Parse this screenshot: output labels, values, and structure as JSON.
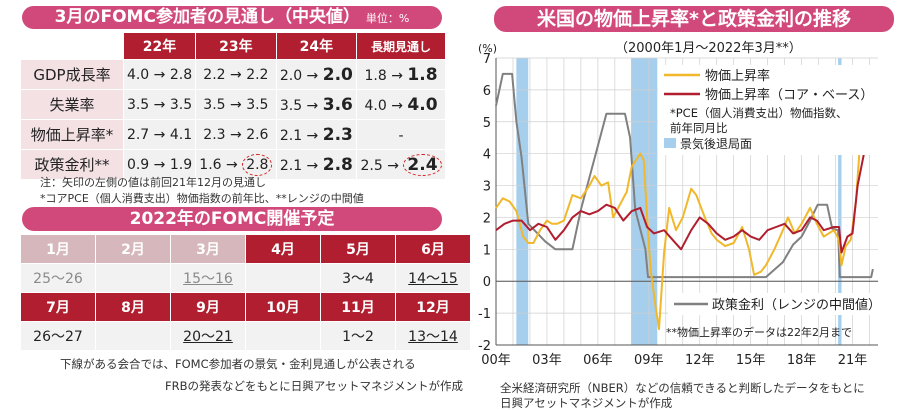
{
  "left": {
    "table1": {
      "title": "3月のFOMC参加者の見通し（中央値）",
      "unit": "単位：%",
      "headers": [
        "",
        "22年",
        "23年",
        "24年",
        "長期見通し"
      ],
      "rows": [
        {
          "label": "GDP成長率",
          "c1": "4.0 → ",
          "b1": "2.8",
          "c2": "2.2 → ",
          "b2": "2.2",
          "c3": "2.0 → ",
          "b3": "2.0",
          "c4": "1.8 → ",
          "b4": "1.8"
        },
        {
          "label": "失業率",
          "c1": "3.5 → ",
          "b1": "3.5",
          "c2": "3.5 → ",
          "b2": "3.5",
          "c3": "3.5 → ",
          "b3": "3.6",
          "c4": "4.0 → ",
          "b4": "4.0"
        },
        {
          "label": "物価上昇率*",
          "c1": "2.7 → ",
          "b1": "4.1",
          "c2": "2.3 → ",
          "b2": "2.6",
          "c3": "2.1 → ",
          "b3": "2.3",
          "c4": "-",
          "b4": ""
        },
        {
          "label": "政策金利**",
          "c1": "0.9 → ",
          "b1": "1.9",
          "c2": "1.6 → ",
          "b2": "2.8",
          "c3": "2.1 → ",
          "b3": "2.8",
          "c4": "2.5 → ",
          "b4": "2.4"
        }
      ],
      "note1": "注：矢印の左側の値は前回21年12月の見通し",
      "note2": "*コアPCE（個人消費支出）物価指数の前年比、**レンジの中間値"
    },
    "table2": {
      "title": "2022年のFOMC開催予定",
      "months1": [
        "1月",
        "2月",
        "3月",
        "4月",
        "5月",
        "6月"
      ],
      "dates1": [
        "25〜26",
        "",
        "15〜16",
        "",
        "3〜4",
        "14〜15"
      ],
      "months2": [
        "7月",
        "8月",
        "9月",
        "10月",
        "11月",
        "12月"
      ],
      "dates2": [
        "26〜27",
        "",
        "20〜21",
        "",
        "1〜2",
        "13〜14"
      ],
      "note1": "下線がある会合では、FOMC参加者の景気・金利見通しが公表される",
      "note2": "FRBの発表などをもとに日興アセットマネジメントが作成"
    }
  },
  "right": {
    "chart_title": "米国の物価上昇率*と政策金利の推移",
    "source1": "全米経済研究所（NBER）などの信頼できると判断したデータをもとに",
    "source2": "日興アセットマネジメントが作成"
  },
  "chart_data": {
    "type": "line",
    "title": "米国の物価上昇率*と政策金利の推移",
    "subtitle": "（2000年1月〜2022年3月**）",
    "ylabel": "(%)",
    "ylim": [
      -2,
      7
    ],
    "xlim": [
      2000,
      2022.5
    ],
    "yticks": [
      "-2",
      "-1",
      "0",
      "1",
      "2",
      "3",
      "4",
      "5",
      "6",
      "7"
    ],
    "xticks": [
      {
        "x": 2000,
        "label": "00年"
      },
      {
        "x": 2003,
        "label": "03年"
      },
      {
        "x": 2006,
        "label": "06年"
      },
      {
        "x": 2009,
        "label": "09年"
      },
      {
        "x": 2012,
        "label": "12年"
      },
      {
        "x": 2015,
        "label": "15年"
      },
      {
        "x": 2018,
        "label": "18年"
      },
      {
        "x": 2021,
        "label": "21年"
      }
    ],
    "recessions": [
      [
        2001.2,
        2001.9
      ],
      [
        2007.95,
        2009.5
      ],
      [
        2020.15,
        2020.35
      ]
    ],
    "legend_note1": "*PCE（個人消費支出）物価指数、",
    "legend_note2": "前年同月比",
    "recession_label": "景気後退局面",
    "footnote": "**物価上昇率のデータは22年2月まで",
    "series": [
      {
        "name": "物価上昇率",
        "color": "#f0b82a",
        "points": [
          [
            2000,
            2.3
          ],
          [
            2000.4,
            2.6
          ],
          [
            2000.8,
            2.5
          ],
          [
            2001.2,
            2.2
          ],
          [
            2001.6,
            1.4
          ],
          [
            2001.9,
            1.2
          ],
          [
            2002.2,
            1.2
          ],
          [
            2002.6,
            1.6
          ],
          [
            2003,
            1.9
          ],
          [
            2003.3,
            1.8
          ],
          [
            2003.6,
            1.8
          ],
          [
            2004,
            1.9
          ],
          [
            2004.5,
            2.7
          ],
          [
            2005,
            2.6
          ],
          [
            2005.5,
            3.0
          ],
          [
            2005.8,
            3.3
          ],
          [
            2006.2,
            3.0
          ],
          [
            2006.6,
            3.1
          ],
          [
            2006.9,
            2.0
          ],
          [
            2007.3,
            2.4
          ],
          [
            2007.7,
            2.8
          ],
          [
            2008,
            3.6
          ],
          [
            2008.5,
            4.0
          ],
          [
            2008.7,
            3.8
          ],
          [
            2008.9,
            2.0
          ],
          [
            2009.1,
            0.4
          ],
          [
            2009.4,
            -0.8
          ],
          [
            2009.6,
            -1.5
          ],
          [
            2009.9,
            0.9
          ],
          [
            2010.2,
            2.3
          ],
          [
            2010.6,
            1.6
          ],
          [
            2011,
            2.0
          ],
          [
            2011.5,
            2.9
          ],
          [
            2011.8,
            2.7
          ],
          [
            2012.3,
            2.0
          ],
          [
            2012.7,
            1.5
          ],
          [
            2013,
            1.3
          ],
          [
            2013.5,
            1.1
          ],
          [
            2014,
            1.2
          ],
          [
            2014.5,
            1.7
          ],
          [
            2014.9,
            1.0
          ],
          [
            2015.2,
            0.2
          ],
          [
            2015.6,
            0.3
          ],
          [
            2015.9,
            0.5
          ],
          [
            2016.4,
            1.0
          ],
          [
            2016.9,
            1.6
          ],
          [
            2017.2,
            2.0
          ],
          [
            2017.6,
            1.5
          ],
          [
            2018,
            1.8
          ],
          [
            2018.5,
            2.3
          ],
          [
            2018.9,
            1.8
          ],
          [
            2019.3,
            1.4
          ],
          [
            2019.9,
            1.6
          ],
          [
            2020.2,
            1.3
          ],
          [
            2020.35,
            0.5
          ],
          [
            2020.6,
            1.1
          ],
          [
            2020.9,
            1.3
          ],
          [
            2021.2,
            2.5
          ],
          [
            2021.4,
            4.0
          ],
          [
            2021.7,
            4.4
          ],
          [
            2021.9,
            5.8
          ],
          [
            2022.1,
            6.4
          ]
        ]
      },
      {
        "name": "物価上昇率（コア・ベース）",
        "color": "#b01e2f",
        "points": [
          [
            2000,
            1.6
          ],
          [
            2000.5,
            1.8
          ],
          [
            2001,
            1.9
          ],
          [
            2001.5,
            1.9
          ],
          [
            2002,
            1.6
          ],
          [
            2002.5,
            1.8
          ],
          [
            2003,
            1.7
          ],
          [
            2003.5,
            1.3
          ],
          [
            2004,
            1.6
          ],
          [
            2004.5,
            2.0
          ],
          [
            2005,
            2.2
          ],
          [
            2005.5,
            2.1
          ],
          [
            2006,
            2.2
          ],
          [
            2006.5,
            2.4
          ],
          [
            2007,
            2.3
          ],
          [
            2007.5,
            1.9
          ],
          [
            2008,
            2.2
          ],
          [
            2008.5,
            2.3
          ],
          [
            2008.9,
            1.7
          ],
          [
            2009.3,
            1.5
          ],
          [
            2009.9,
            1.6
          ],
          [
            2010.4,
            1.3
          ],
          [
            2010.9,
            1.0
          ],
          [
            2011.5,
            1.6
          ],
          [
            2012,
            2.0
          ],
          [
            2012.5,
            1.8
          ],
          [
            2013,
            1.5
          ],
          [
            2013.5,
            1.3
          ],
          [
            2014,
            1.4
          ],
          [
            2014.5,
            1.6
          ],
          [
            2015,
            1.4
          ],
          [
            2015.5,
            1.3
          ],
          [
            2016,
            1.6
          ],
          [
            2016.5,
            1.7
          ],
          [
            2017,
            1.8
          ],
          [
            2017.5,
            1.5
          ],
          [
            2018,
            1.6
          ],
          [
            2018.5,
            2.0
          ],
          [
            2018.9,
            1.9
          ],
          [
            2019.3,
            1.6
          ],
          [
            2019.9,
            1.7
          ],
          [
            2020.2,
            1.7
          ],
          [
            2020.35,
            0.9
          ],
          [
            2020.7,
            1.4
          ],
          [
            2021,
            1.5
          ],
          [
            2021.3,
            3.0
          ],
          [
            2021.6,
            3.8
          ],
          [
            2021.9,
            4.6
          ],
          [
            2022.1,
            5.4
          ]
        ]
      },
      {
        "name": "政策金利（レンジの中間値）",
        "color": "#808080",
        "points": [
          [
            2000,
            5.5
          ],
          [
            2000.4,
            6.5
          ],
          [
            2000.95,
            6.5
          ],
          [
            2001.2,
            5.0
          ],
          [
            2001.5,
            3.9
          ],
          [
            2001.9,
            1.8
          ],
          [
            2002.9,
            1.25
          ],
          [
            2003.5,
            1.0
          ],
          [
            2004.5,
            1.0
          ],
          [
            2005,
            2.25
          ],
          [
            2005.5,
            3.25
          ],
          [
            2006,
            4.25
          ],
          [
            2006.5,
            5.25
          ],
          [
            2007.6,
            5.25
          ],
          [
            2007.9,
            4.5
          ],
          [
            2008.2,
            2.25
          ],
          [
            2008.8,
            1.0
          ],
          [
            2008.95,
            0.13
          ],
          [
            2015.9,
            0.13
          ],
          [
            2016.9,
            0.6
          ],
          [
            2017.5,
            1.15
          ],
          [
            2018,
            1.4
          ],
          [
            2018.5,
            1.9
          ],
          [
            2018.95,
            2.4
          ],
          [
            2019.5,
            2.4
          ],
          [
            2019.8,
            1.65
          ],
          [
            2020.15,
            1.6
          ],
          [
            2020.25,
            0.13
          ],
          [
            2022.1,
            0.13
          ],
          [
            2022.2,
            0.38
          ]
        ]
      }
    ]
  }
}
